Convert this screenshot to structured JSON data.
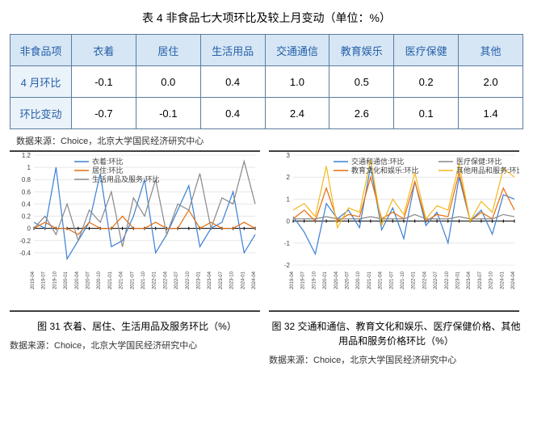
{
  "title": "表 4 非食品七大项环比及较上月变动（单位：%）",
  "table": {
    "corner": "非食品项",
    "columns": [
      "衣着",
      "居住",
      "生活用品",
      "交通通信",
      "教育娱乐",
      "医疗保健",
      "其他"
    ],
    "rows": [
      {
        "label": "4 月环比",
        "values": [
          "-0.1",
          "0.0",
          "0.4",
          "1.0",
          "0.5",
          "0.2",
          "2.0"
        ]
      },
      {
        "label": "环比变动",
        "values": [
          "-0.7",
          "-0.1",
          "0.4",
          "2.4",
          "2.6",
          "0.1",
          "1.4"
        ]
      }
    ]
  },
  "table_source": "数据来源：Choice，北京大学国民经济研究中心",
  "x_labels": [
    "2019-04",
    "2019-07",
    "2019-10",
    "2020-01",
    "2020-04",
    "2020-07",
    "2020-10",
    "2021-01",
    "2021-04",
    "2021-07",
    "2021-10",
    "2022-01",
    "2022-04",
    "2022-07",
    "2022-10",
    "2023-01",
    "2023-04",
    "2023-07",
    "2023-10",
    "2024-01",
    "2024-04"
  ],
  "x_label_fontsize": 6,
  "chart_left": {
    "type": "line",
    "legend": [
      "衣着:环比",
      "居住:环比",
      "生活用品及服务:环比"
    ],
    "colors": [
      "#3a7fd5",
      "#e86c0a",
      "#888888"
    ],
    "ylim": [
      -0.6,
      1.2
    ],
    "yticks": [
      -0.4,
      -0.2,
      0,
      0.2,
      0.4,
      0.6,
      0.8,
      1,
      1.2
    ],
    "grid_color": "#d9d9d9",
    "line_width": 1.2,
    "background": "#ffffff",
    "series": [
      [
        0.1,
        0.0,
        1.0,
        -0.5,
        -0.2,
        0.1,
        0.9,
        -0.3,
        -0.2,
        0.2,
        0.8,
        -0.4,
        -0.1,
        0.3,
        0.7,
        -0.3,
        0.0,
        0.1,
        0.6,
        -0.4,
        -0.1
      ],
      [
        0.0,
        0.1,
        0.0,
        0.0,
        -0.1,
        0.1,
        0.0,
        0.0,
        0.2,
        0.0,
        0.0,
        0.1,
        0.0,
        0.0,
        0.3,
        0.0,
        0.1,
        0.0,
        0.0,
        0.1,
        0.0
      ],
      [
        0.0,
        0.2,
        -0.1,
        0.4,
        -0.2,
        0.3,
        0.1,
        0.6,
        -0.3,
        0.5,
        0.2,
        0.8,
        -0.1,
        0.4,
        0.3,
        0.9,
        0.0,
        0.5,
        0.4,
        1.1,
        0.4
      ]
    ],
    "caption": "图 31 衣着、居住、生活用品及服务环比（%）",
    "source": "数据来源：Choice，北京大学国民经济研究中心"
  },
  "chart_right": {
    "type": "line",
    "legend": [
      "交通和通信:环比",
      "教育文化和娱乐:环比",
      "医疗保健:环比",
      "其他用品和服务:环比"
    ],
    "colors": [
      "#3a7fd5",
      "#e86c0a",
      "#888888",
      "#f4b81c"
    ],
    "ylim": [
      -2,
      3
    ],
    "yticks": [
      -2,
      -1,
      0,
      1,
      2,
      3
    ],
    "grid_color": "#d9d9d9",
    "line_width": 1.2,
    "background": "#ffffff",
    "series": [
      [
        0.2,
        -0.5,
        -1.5,
        0.8,
        0.1,
        0.5,
        -0.3,
        2.5,
        -0.4,
        0.6,
        -0.8,
        1.8,
        -0.2,
        0.4,
        -1.0,
        2.0,
        0.0,
        0.5,
        -0.6,
        1.2,
        1.0
      ],
      [
        0.1,
        0.5,
        0.0,
        1.5,
        0.0,
        0.3,
        0.2,
        2.0,
        0.1,
        0.4,
        0.1,
        1.8,
        0.0,
        0.3,
        0.2,
        2.2,
        0.0,
        0.4,
        0.1,
        1.5,
        0.5
      ],
      [
        0.1,
        0.1,
        0.1,
        0.2,
        0.1,
        0.1,
        0.1,
        0.2,
        0.1,
        0.1,
        0.1,
        0.3,
        0.1,
        0.1,
        0.1,
        0.2,
        0.1,
        0.1,
        0.1,
        0.3,
        0.2
      ],
      [
        0.5,
        0.8,
        0.2,
        2.5,
        -0.3,
        0.6,
        0.4,
        2.8,
        -0.2,
        1.0,
        0.3,
        2.2,
        0.1,
        0.7,
        0.5,
        2.6,
        0.0,
        0.9,
        0.4,
        2.4,
        2.0
      ]
    ],
    "caption": "图 32 交通和通信、教育文化和娱乐、医疗保健价格、其他用品和服务价格环比（%）",
    "source": "数据来源：Choice，北京大学国民经济研究中心"
  }
}
